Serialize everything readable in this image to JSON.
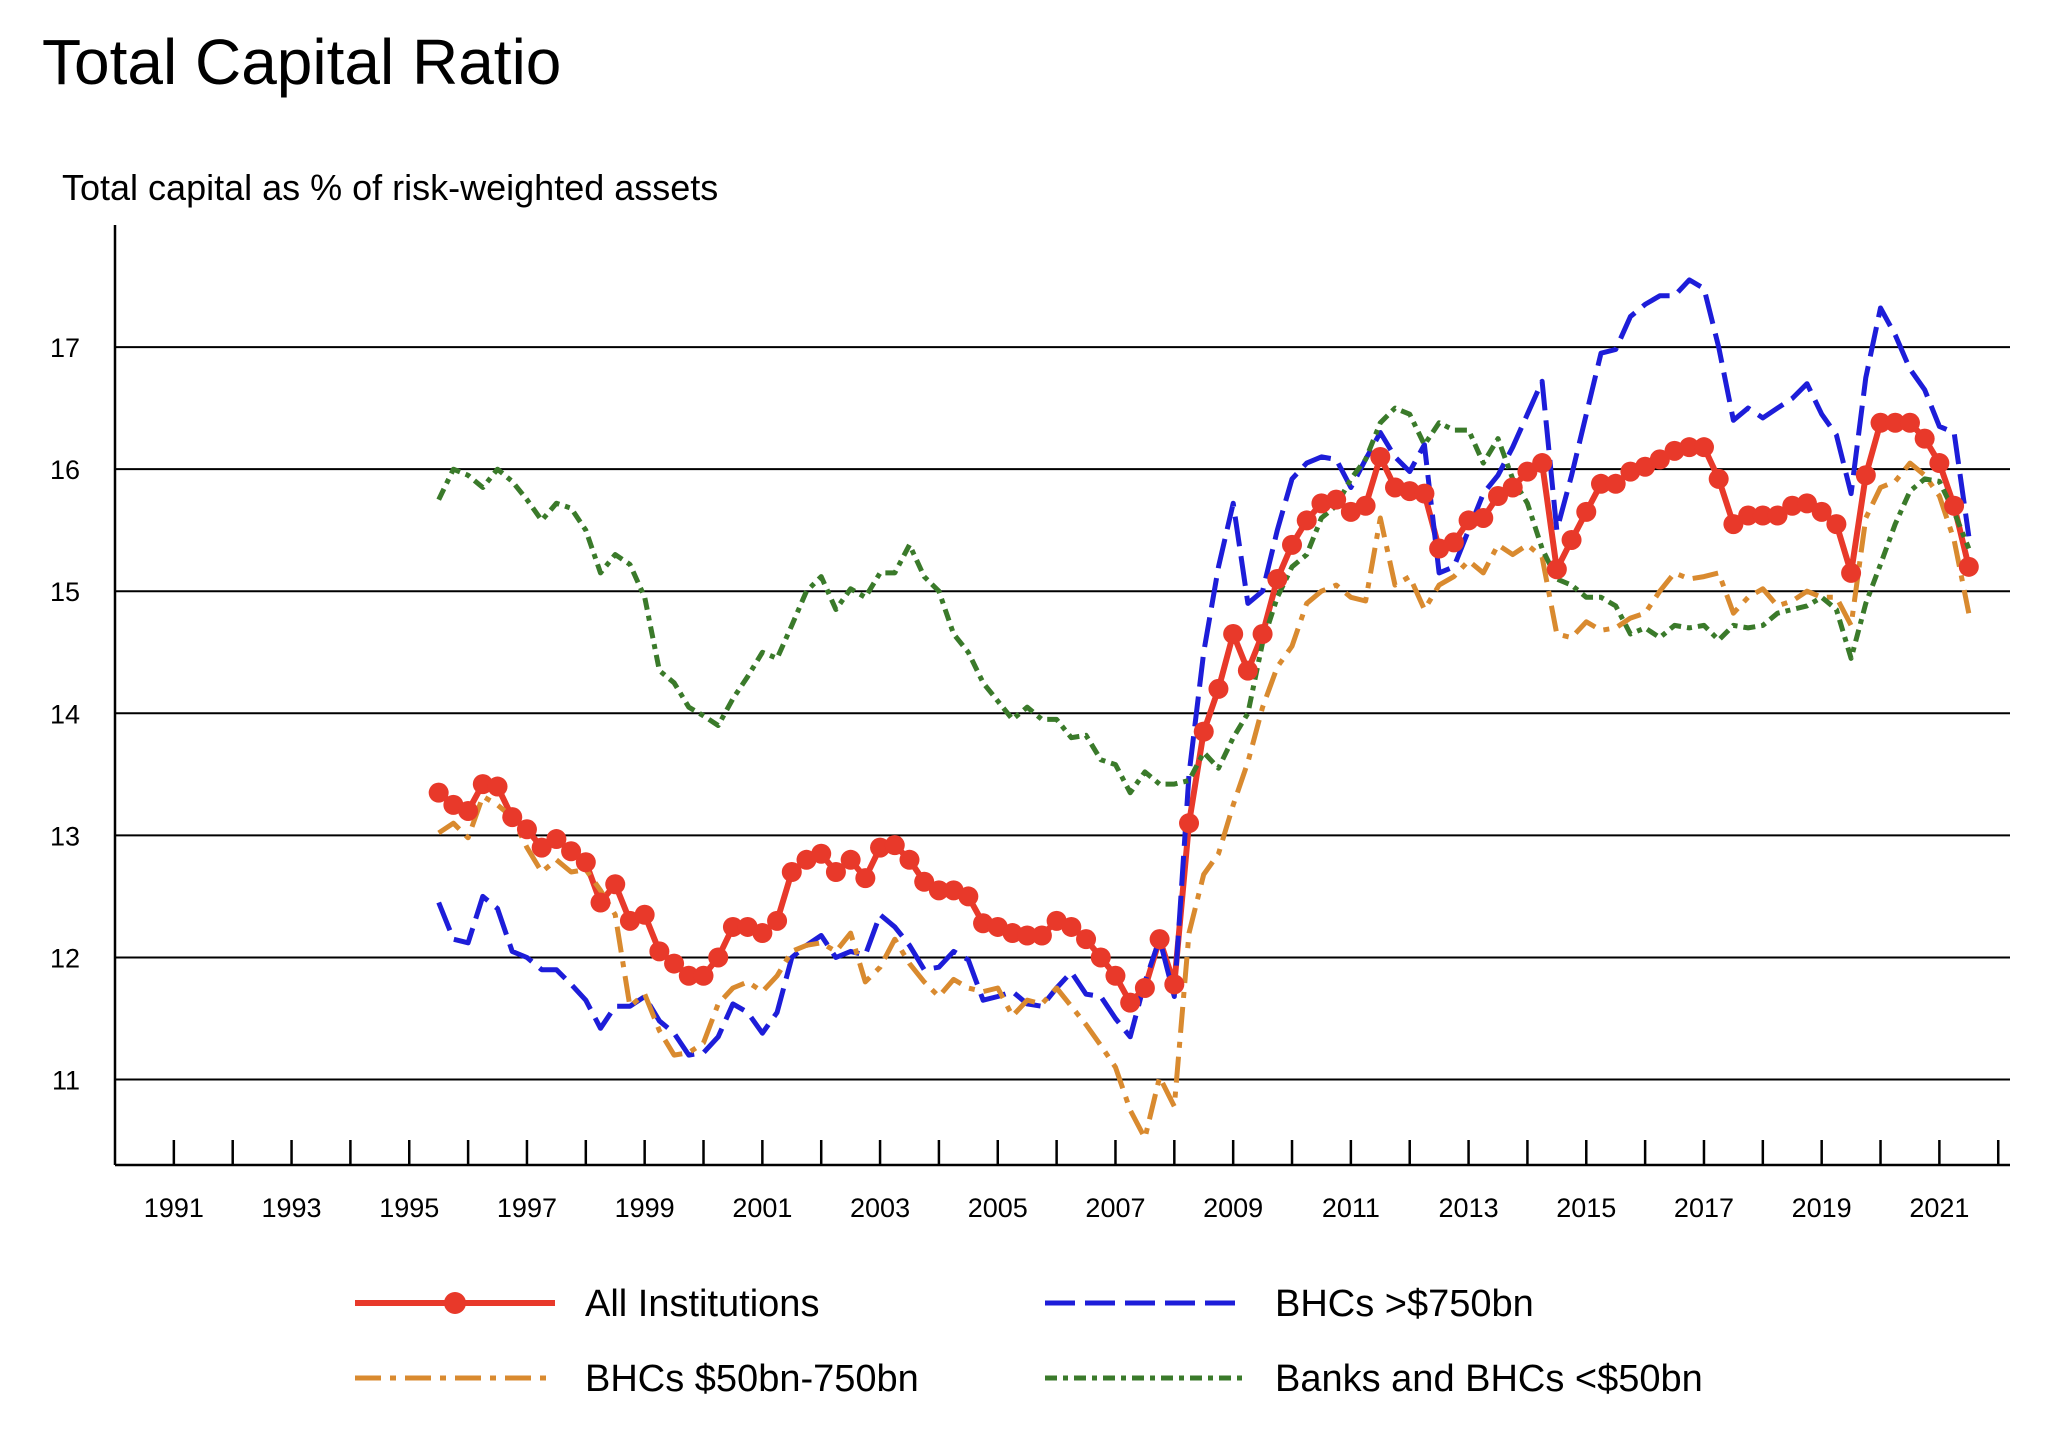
{
  "chart_data": {
    "type": "line",
    "title": "Total Capital Ratio",
    "subtitle": "Total capital as % of risk-weighted assets",
    "xlabel": "",
    "ylabel": "",
    "xlim": [
      1990.0,
      2022.2
    ],
    "ylim": [
      10.3,
      18.0
    ],
    "yticks": [
      11,
      12,
      13,
      14,
      15,
      16,
      17
    ],
    "xtick_labels": [
      "1991",
      "1993",
      "1995",
      "1997",
      "1999",
      "2001",
      "2003",
      "2005",
      "2007",
      "2009",
      "2011",
      "2013",
      "2015",
      "2017",
      "2019",
      "2021"
    ],
    "grid": "horizontal",
    "legend_position": "bottom",
    "series": [
      {
        "name": "All Institutions",
        "color": "#e8392a",
        "style": "solid-markers",
        "x": [
          1995.5,
          1995.75,
          1996,
          1996.25,
          1996.5,
          1996.75,
          1997,
          1997.25,
          1997.5,
          1997.75,
          1998,
          1998.25,
          1998.5,
          1998.75,
          1999,
          1999.25,
          1999.5,
          1999.75,
          2000,
          2000.25,
          2000.5,
          2000.75,
          2001,
          2001.25,
          2001.5,
          2001.75,
          2002,
          2002.25,
          2002.5,
          2002.75,
          2003,
          2003.25,
          2003.5,
          2003.75,
          2004,
          2004.25,
          2004.5,
          2004.75,
          2005,
          2005.25,
          2005.5,
          2005.75,
          2006,
          2006.25,
          2006.5,
          2006.75,
          2007,
          2007.25,
          2007.5,
          2007.75,
          2008,
          2008.25,
          2008.5,
          2008.75,
          2009,
          2009.25,
          2009.5,
          2009.75,
          2010,
          2010.25,
          2010.5,
          2010.75,
          2011,
          2011.25,
          2011.5,
          2011.75,
          2012,
          2012.25,
          2012.5,
          2012.75,
          2013,
          2013.25,
          2013.5,
          2013.75,
          2014,
          2014.25,
          2014.5,
          2014.75,
          2015,
          2015.25,
          2015.5,
          2015.75,
          2016,
          2016.25,
          2016.5,
          2016.75,
          2017,
          2017.25,
          2017.5,
          2017.75,
          2018,
          2018.25,
          2018.5,
          2018.75,
          2019,
          2019.25,
          2019.5,
          2019.75,
          2020,
          2020.25,
          2020.5,
          2020.75,
          2021,
          2021.25,
          2021.5
        ],
        "values": [
          13.35,
          13.25,
          13.2,
          13.42,
          13.4,
          13.15,
          13.05,
          12.9,
          12.97,
          12.87,
          12.78,
          12.45,
          12.6,
          12.3,
          12.35,
          12.05,
          11.95,
          11.85,
          11.85,
          12.0,
          12.25,
          12.25,
          12.2,
          12.3,
          12.7,
          12.8,
          12.85,
          12.7,
          12.8,
          12.65,
          12.9,
          12.92,
          12.8,
          12.62,
          12.55,
          12.55,
          12.5,
          12.28,
          12.25,
          12.2,
          12.18,
          12.18,
          12.3,
          12.25,
          12.15,
          12.0,
          11.85,
          11.63,
          11.75,
          12.15,
          11.78,
          13.1,
          13.85,
          14.2,
          14.65,
          14.35,
          14.65,
          15.1,
          15.38,
          15.58,
          15.72,
          15.75,
          15.65,
          15.7,
          16.1,
          15.85,
          15.82,
          15.8,
          15.35,
          15.4,
          15.58,
          15.6,
          15.78,
          15.85,
          15.98,
          16.05,
          15.18,
          15.42,
          15.65,
          15.88,
          15.88,
          15.98,
          16.02,
          16.08,
          16.15,
          16.18,
          16.18,
          15.92,
          15.55,
          15.62,
          15.62,
          15.62,
          15.7,
          15.72,
          15.65,
          15.55,
          15.15,
          15.95,
          16.38,
          16.38,
          16.38,
          16.25,
          16.05,
          15.7,
          15.2
        ]
      },
      {
        "name": "BHCs >$750bn",
        "color": "#1d1dd9",
        "style": "dashed",
        "x": [
          1995.5,
          1995.75,
          1996,
          1996.25,
          1996.5,
          1996.75,
          1997,
          1997.25,
          1997.5,
          1997.75,
          1998,
          1998.25,
          1998.5,
          1998.75,
          1999,
          1999.25,
          1999.5,
          1999.75,
          2000,
          2000.25,
          2000.5,
          2000.75,
          2001,
          2001.25,
          2001.5,
          2001.75,
          2002,
          2002.25,
          2002.5,
          2002.75,
          2003,
          2003.25,
          2003.5,
          2003.75,
          2004,
          2004.25,
          2004.5,
          2004.75,
          2005,
          2005.25,
          2005.5,
          2005.75,
          2006,
          2006.25,
          2006.5,
          2006.75,
          2007,
          2007.25,
          2007.5,
          2007.75,
          2008,
          2008.25,
          2008.5,
          2008.75,
          2009,
          2009.25,
          2009.5,
          2009.75,
          2010,
          2010.25,
          2010.5,
          2010.75,
          2011,
          2011.25,
          2011.5,
          2011.75,
          2012,
          2012.25,
          2012.5,
          2012.75,
          2013,
          2013.25,
          2013.5,
          2013.75,
          2014,
          2014.25,
          2014.5,
          2014.75,
          2015,
          2015.25,
          2015.5,
          2015.75,
          2016,
          2016.25,
          2016.5,
          2016.75,
          2017,
          2017.25,
          2017.5,
          2017.75,
          2018,
          2018.25,
          2018.5,
          2018.75,
          2019,
          2019.25,
          2019.5,
          2019.75,
          2020,
          2020.25,
          2020.5,
          2020.75,
          2021,
          2021.25,
          2021.5
        ],
        "values": [
          12.45,
          12.15,
          12.12,
          12.5,
          12.4,
          12.05,
          12.0,
          11.9,
          11.9,
          11.78,
          11.65,
          11.42,
          11.6,
          11.6,
          11.68,
          11.48,
          11.38,
          11.2,
          11.22,
          11.35,
          11.62,
          11.55,
          11.38,
          11.55,
          12.0,
          12.1,
          12.18,
          12.0,
          12.05,
          12.02,
          12.35,
          12.25,
          12.1,
          11.9,
          11.92,
          12.05,
          11.98,
          11.65,
          11.68,
          11.72,
          11.62,
          11.6,
          11.75,
          11.88,
          11.7,
          11.68,
          11.5,
          11.35,
          11.8,
          12.15,
          11.68,
          13.5,
          14.5,
          15.2,
          15.72,
          14.9,
          15.0,
          15.5,
          15.92,
          16.05,
          16.1,
          16.08,
          15.85,
          16.08,
          16.3,
          16.1,
          15.98,
          16.2,
          15.15,
          15.2,
          15.5,
          15.8,
          15.95,
          16.18,
          16.45,
          16.72,
          15.5,
          15.95,
          16.45,
          16.95,
          16.98,
          17.25,
          17.35,
          17.42,
          17.42,
          17.55,
          17.48,
          17.0,
          16.4,
          16.5,
          16.42,
          16.5,
          16.58,
          16.7,
          16.45,
          16.28,
          15.8,
          16.75,
          17.32,
          17.1,
          16.82,
          16.65,
          16.35,
          16.3,
          15.45
        ]
      },
      {
        "name": "BHCs $50bn-750bn",
        "color": "#d98a2f",
        "style": "dashdot",
        "x": [
          1995.5,
          1995.75,
          1996,
          1996.25,
          1996.5,
          1996.75,
          1997,
          1997.25,
          1997.5,
          1997.75,
          1998,
          1998.25,
          1998.5,
          1998.75,
          1999,
          1999.25,
          1999.5,
          1999.75,
          2000,
          2000.25,
          2000.5,
          2000.75,
          2001,
          2001.25,
          2001.5,
          2001.75,
          2002,
          2002.25,
          2002.5,
          2002.75,
          2003,
          2003.25,
          2003.5,
          2003.75,
          2004,
          2004.25,
          2004.5,
          2004.75,
          2005,
          2005.25,
          2005.5,
          2005.75,
          2006,
          2006.25,
          2006.5,
          2006.75,
          2007,
          2007.25,
          2007.5,
          2007.75,
          2008,
          2008.25,
          2008.5,
          2008.75,
          2009,
          2009.25,
          2009.5,
          2009.75,
          2010,
          2010.25,
          2010.5,
          2010.75,
          2011,
          2011.25,
          2011.5,
          2011.75,
          2012,
          2012.25,
          2012.5,
          2012.75,
          2013,
          2013.25,
          2013.5,
          2013.75,
          2014,
          2014.25,
          2014.5,
          2014.75,
          2015,
          2015.25,
          2015.5,
          2015.75,
          2016,
          2016.25,
          2016.5,
          2016.75,
          2017,
          2017.25,
          2017.5,
          2017.75,
          2018,
          2018.25,
          2018.5,
          2018.75,
          2019,
          2019.25,
          2019.5,
          2019.75,
          2020,
          2020.25,
          2020.5,
          2020.75,
          2021,
          2021.25,
          2021.5
        ],
        "values": [
          13.02,
          13.1,
          12.98,
          13.32,
          13.25,
          13.15,
          12.9,
          12.7,
          12.8,
          12.7,
          12.72,
          12.55,
          12.35,
          11.6,
          11.7,
          11.4,
          11.2,
          11.22,
          11.3,
          11.62,
          11.75,
          11.8,
          11.72,
          11.85,
          12.05,
          12.1,
          12.12,
          12.05,
          12.2,
          11.8,
          11.92,
          12.15,
          11.95,
          11.8,
          11.68,
          11.82,
          11.75,
          11.72,
          11.75,
          11.52,
          11.65,
          11.62,
          11.75,
          11.6,
          11.45,
          11.28,
          11.1,
          10.75,
          10.52,
          11.02,
          10.78,
          12.2,
          12.68,
          12.85,
          13.25,
          13.6,
          14.05,
          14.38,
          14.55,
          14.9,
          15.0,
          15.05,
          14.95,
          14.92,
          15.6,
          15.05,
          15.12,
          14.85,
          15.05,
          15.12,
          15.25,
          15.15,
          15.38,
          15.3,
          15.38,
          15.28,
          14.65,
          14.62,
          14.75,
          14.68,
          14.7,
          14.78,
          14.82,
          15.0,
          15.15,
          15.1,
          15.12,
          15.15,
          14.82,
          14.95,
          15.02,
          14.88,
          14.92,
          15.0,
          14.95,
          14.95,
          14.72,
          15.6,
          15.85,
          15.9,
          16.05,
          15.95,
          15.78,
          15.42,
          14.82
        ]
      },
      {
        "name": "Banks and BHCs <$50bn",
        "color": "#3a7a2a",
        "style": "dotdash",
        "x": [
          1995.5,
          1995.75,
          1996,
          1996.25,
          1996.5,
          1996.75,
          1997,
          1997.25,
          1997.5,
          1997.75,
          1998,
          1998.25,
          1998.5,
          1998.75,
          1999,
          1999.25,
          1999.5,
          1999.75,
          2000,
          2000.25,
          2000.5,
          2000.75,
          2001,
          2001.25,
          2001.5,
          2001.75,
          2002,
          2002.25,
          2002.5,
          2002.75,
          2003,
          2003.25,
          2003.5,
          2003.75,
          2004,
          2004.25,
          2004.5,
          2004.75,
          2005,
          2005.25,
          2005.5,
          2005.75,
          2006,
          2006.25,
          2006.5,
          2006.75,
          2007,
          2007.25,
          2007.5,
          2007.75,
          2008,
          2008.25,
          2008.5,
          2008.75,
          2009,
          2009.25,
          2009.5,
          2009.75,
          2010,
          2010.25,
          2010.5,
          2010.75,
          2011,
          2011.25,
          2011.5,
          2011.75,
          2012,
          2012.25,
          2012.5,
          2012.75,
          2013,
          2013.25,
          2013.5,
          2013.75,
          2014,
          2014.25,
          2014.5,
          2014.75,
          2015,
          2015.25,
          2015.5,
          2015.75,
          2016,
          2016.25,
          2016.5,
          2016.75,
          2017,
          2017.25,
          2017.5,
          2017.75,
          2018,
          2018.25,
          2018.5,
          2018.75,
          2019,
          2019.25,
          2019.5,
          2019.75,
          2020,
          2020.25,
          2020.5,
          2020.75,
          2021,
          2021.25,
          2021.5
        ],
        "values": [
          15.75,
          16.0,
          15.95,
          15.85,
          16.0,
          15.9,
          15.75,
          15.58,
          15.72,
          15.68,
          15.5,
          15.15,
          15.3,
          15.22,
          14.95,
          14.35,
          14.25,
          14.05,
          13.98,
          13.9,
          14.12,
          14.3,
          14.5,
          14.45,
          14.72,
          15.0,
          15.12,
          14.85,
          15.02,
          14.95,
          15.15,
          15.15,
          15.38,
          15.12,
          15.0,
          14.65,
          14.5,
          14.25,
          14.1,
          13.95,
          14.05,
          13.95,
          13.95,
          13.8,
          13.82,
          13.62,
          13.58,
          13.35,
          13.52,
          13.42,
          13.42,
          13.45,
          13.68,
          13.55,
          13.8,
          14.0,
          14.58,
          14.95,
          15.2,
          15.3,
          15.6,
          15.7,
          15.92,
          16.08,
          16.38,
          16.5,
          16.45,
          16.2,
          16.38,
          16.32,
          16.32,
          16.05,
          16.25,
          15.92,
          15.72,
          15.35,
          15.1,
          15.05,
          14.95,
          14.95,
          14.88,
          14.65,
          14.7,
          14.62,
          14.72,
          14.7,
          14.72,
          14.6,
          14.72,
          14.7,
          14.72,
          14.82,
          14.85,
          14.88,
          14.95,
          14.85,
          14.45,
          14.9,
          15.22,
          15.55,
          15.82,
          15.92,
          15.9,
          15.65,
          15.35
        ]
      }
    ]
  }
}
